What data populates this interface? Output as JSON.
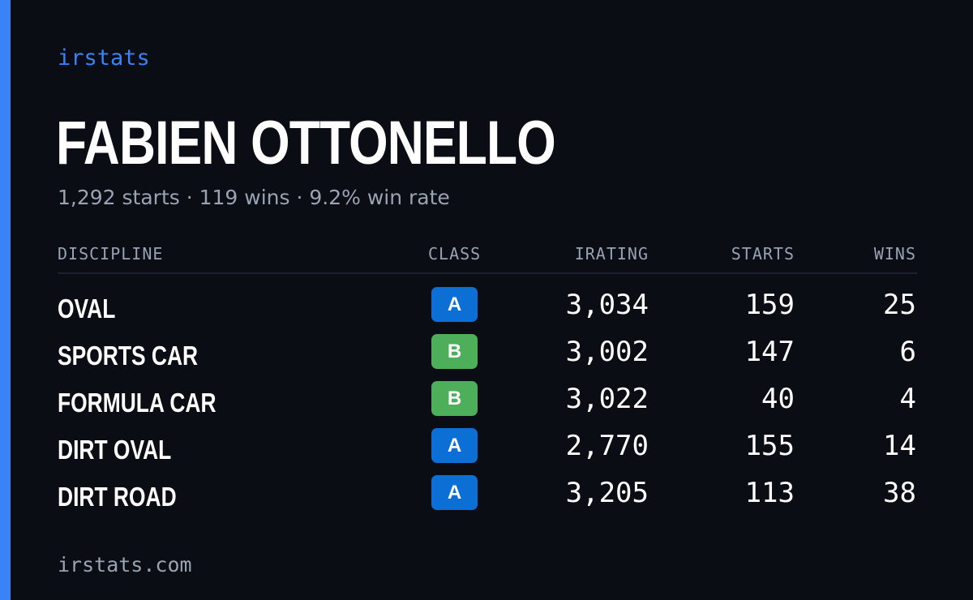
{
  "brand": "irstats",
  "driver": {
    "name": "FABIEN OTTONELLO",
    "summary": "1,292 starts · 119 wins · 9.2% win rate"
  },
  "table": {
    "headers": {
      "discipline": "DISCIPLINE",
      "class": "CLASS",
      "irating": "IRATING",
      "starts": "STARTS",
      "wins": "WINS"
    },
    "rows": [
      {
        "discipline": "OVAL",
        "class": "A",
        "irating": "3,034",
        "starts": "159",
        "wins": "25"
      },
      {
        "discipline": "SPORTS CAR",
        "class": "B",
        "irating": "3,002",
        "starts": "147",
        "wins": "6"
      },
      {
        "discipline": "FORMULA CAR",
        "class": "B",
        "irating": "3,022",
        "starts": "40",
        "wins": "4"
      },
      {
        "discipline": "DIRT OVAL",
        "class": "A",
        "irating": "2,770",
        "starts": "155",
        "wins": "14"
      },
      {
        "discipline": "DIRT ROAD",
        "class": "A",
        "irating": "3,205",
        "starts": "113",
        "wins": "38"
      }
    ]
  },
  "colors": {
    "accent": "#3b82f6",
    "class_a": "#0c6fd6",
    "class_b": "#4eaf5b",
    "background": "#0a0d14"
  },
  "footer": {
    "url": "irstats.com"
  }
}
